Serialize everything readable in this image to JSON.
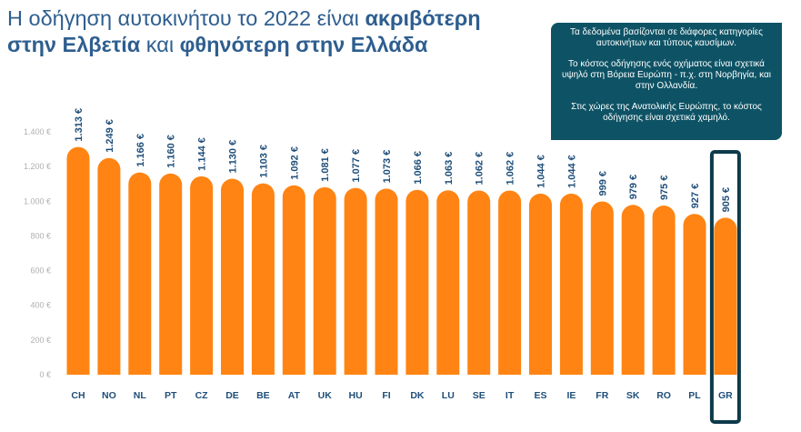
{
  "title": {
    "part1": "Η οδήγηση αυτοκινήτου το 2022 είναι ",
    "bold1": "ακριβότερη",
    "bold2": "στην Ελβετία",
    "part2": " και ",
    "bold3": "φθηνότερη στην Ελλάδα"
  },
  "note": {
    "p1": "Τα δεδομένα βασίζονται σε διάφορες κατηγορίες αυτοκινήτων και τύπους καυσίμων.",
    "p2": "Το κόστος οδήγησης ενός οχήματος είναι σχετικά υψηλό στη Βόρεια Ευρώπη - π.χ. στη Νορβηγία, και στην Ολλανδία.",
    "p3": "Στις χώρες της Ανατολικής Ευρώπης, το κόστος οδήγησης είναι σχετικά χαμηλό."
  },
  "colors": {
    "bar": "#ff8413",
    "title": "#2e5e8f",
    "value_label": "#1f4e79",
    "note_bg": "#0e5365",
    "highlight_box": "#0e3a4a",
    "axis_tick": "#b0b0b0",
    "category_label": "#1f4e79"
  },
  "chart_data": {
    "type": "bar",
    "categories": [
      "CH",
      "NO",
      "NL",
      "PT",
      "CZ",
      "DE",
      "BE",
      "AT",
      "UK",
      "HU",
      "FI",
      "DK",
      "LU",
      "SE",
      "IT",
      "ES",
      "IE",
      "FR",
      "SK",
      "RO",
      "PL",
      "GR"
    ],
    "values": [
      1313,
      1249,
      1166,
      1160,
      1144,
      1130,
      1103,
      1092,
      1081,
      1077,
      1073,
      1066,
      1063,
      1062,
      1062,
      1044,
      1044,
      999,
      979,
      975,
      927,
      905
    ],
    "value_labels": [
      "1.313 €",
      "1.249 €",
      "1.166 €",
      "1.160 €",
      "1.144 €",
      "1.130 €",
      "1.103 €",
      "1.092 €",
      "1.081 €",
      "1.077 €",
      "1.073 €",
      "1.066 €",
      "1.063 €",
      "1.062 €",
      "1.062 €",
      "1.044 €",
      "1.044 €",
      "999 €",
      "979 €",
      "975 €",
      "927 €",
      "905 €"
    ],
    "y_ticks": [
      0,
      200,
      400,
      600,
      800,
      1000,
      1200,
      1400
    ],
    "y_tick_labels": [
      "0 €",
      "200 €",
      "400 €",
      "600 €",
      "800 €",
      "1.000 €",
      "1.200 €",
      "1.400 €"
    ],
    "ylim": [
      0,
      1400
    ],
    "highlight": "GR",
    "grid": false,
    "title": "",
    "xlabel": "",
    "ylabel": ""
  }
}
